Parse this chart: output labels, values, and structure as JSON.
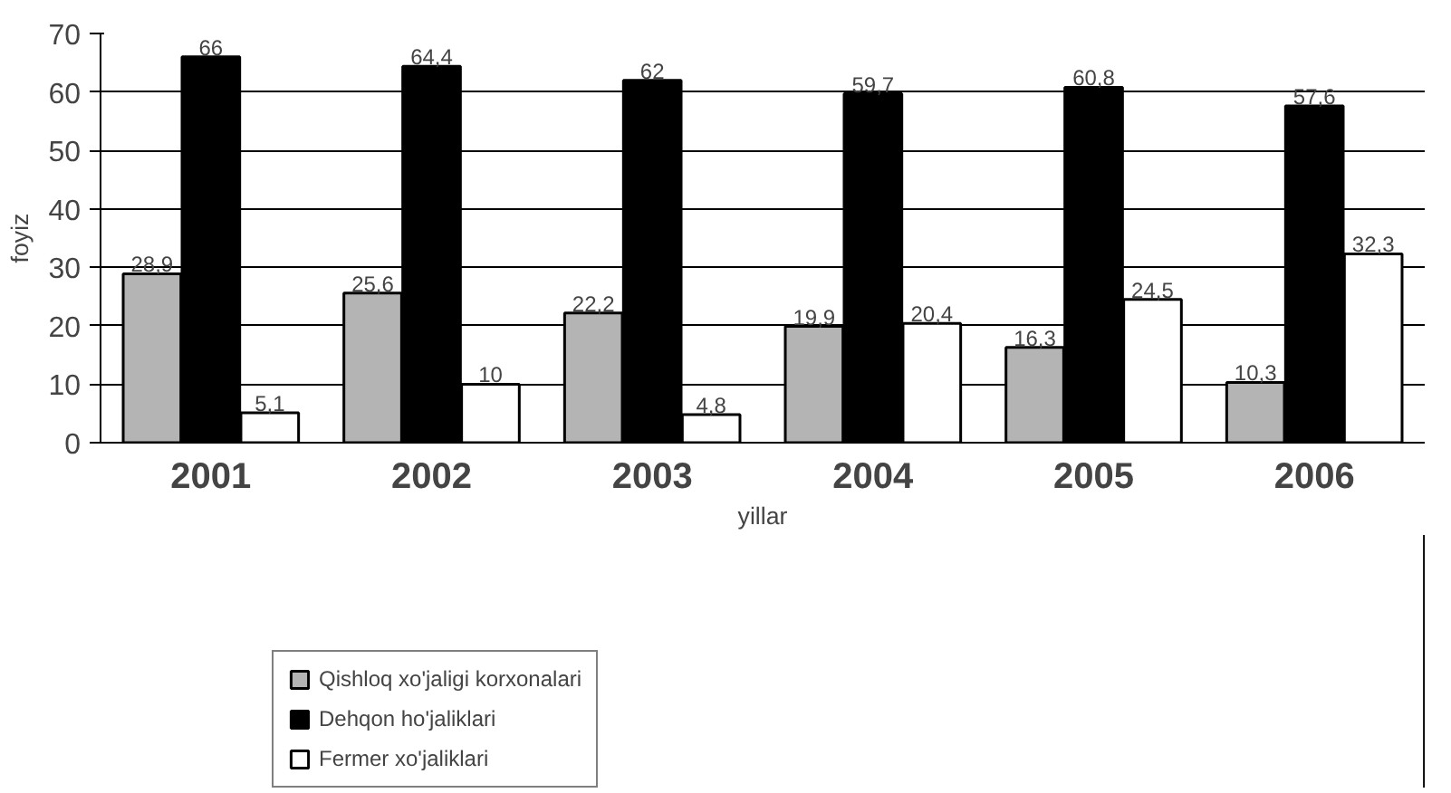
{
  "chart_data": {
    "type": "bar",
    "xlabel": "yillar",
    "ylabel": "foyiz",
    "categories": [
      "2001",
      "2002",
      "2003",
      "2004",
      "2005",
      "2006"
    ],
    "series": [
      {
        "name": "Qishloq xo'jaligi korxonalari",
        "color": "#b4b4b4",
        "values": [
          28.9,
          25.6,
          22.2,
          19.9,
          16.3,
          10.3
        ],
        "value_labels": [
          "28,9",
          "25,6",
          "22,2",
          "19,9",
          "16,3",
          "10,3"
        ]
      },
      {
        "name": "Dehqon ho'jaliklari",
        "color": "#000000",
        "values": [
          66,
          64.4,
          62,
          59.7,
          60.8,
          57.6
        ],
        "value_labels": [
          "66",
          "64,4",
          "62",
          "59,7",
          "60,8",
          "57,6"
        ]
      },
      {
        "name": "Fermer xo'jaliklari",
        "color": "#ffffff",
        "values": [
          5.1,
          10,
          4.8,
          20.4,
          24.5,
          32.3
        ],
        "value_labels": [
          "5,1",
          "10",
          "4,8",
          "20,4",
          "24,5",
          "32,3"
        ]
      }
    ],
    "ylim": [
      0,
      70
    ],
    "yticks": [
      0,
      10,
      20,
      30,
      40,
      50,
      60,
      70
    ],
    "grid": "y",
    "legend": "bottom"
  }
}
